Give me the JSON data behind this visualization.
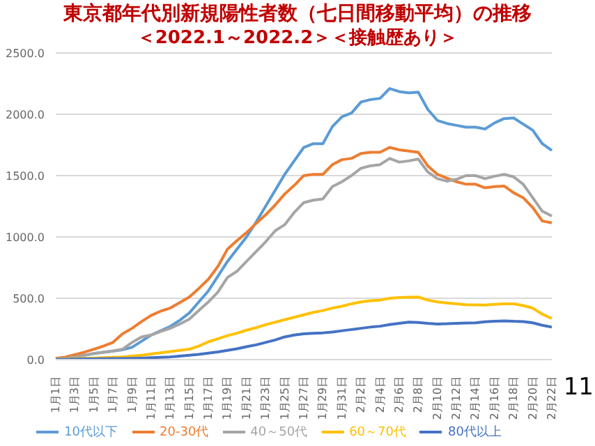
{
  "chart_data": {
    "type": "line",
    "title": "東京都年代別新規陽性者数（七日間移動平均）の推移",
    "subtitle": "＜2022.1～2022.2＞＜接触歴あり＞",
    "categories": [
      "1月1日",
      null,
      "1月3日",
      null,
      "1月5日",
      null,
      "1月7日",
      null,
      "1月9日",
      null,
      "1月11日",
      null,
      "1月13日",
      null,
      "1月15日",
      null,
      "1月17日",
      null,
      "1月19日",
      null,
      "1月21日",
      null,
      "1月23日",
      null,
      "1月25日",
      null,
      "1月27日",
      null,
      "1月29日",
      null,
      "1月31日",
      null,
      "2月2日",
      null,
      "2月4日",
      null,
      "2月6日",
      null,
      "2月8日",
      null,
      "2月10日",
      null,
      "2月12日",
      null,
      "2月14日",
      null,
      "2月16日",
      null,
      "2月18日",
      null,
      "2月20日",
      null,
      "2月22日"
    ],
    "series": [
      {
        "name": "10代以下",
        "color": "#5b9bd5",
        "values": [
          10,
          15,
          25,
          35,
          50,
          60,
          70,
          80,
          100,
          150,
          200,
          235,
          270,
          320,
          380,
          470,
          560,
          680,
          800,
          900,
          1000,
          1120,
          1250,
          1380,
          1510,
          1620,
          1730,
          1760,
          1760,
          1900,
          1980,
          2010,
          2100,
          2120,
          2130,
          2210,
          2185,
          2175,
          2180,
          2040,
          1950,
          1925,
          1910,
          1895,
          1895,
          1880,
          1930,
          1965,
          1970,
          1920,
          1870,
          1760,
          1705
        ]
      },
      {
        "name": "20-30代",
        "color": "#ed7d31",
        "values": [
          10,
          20,
          40,
          60,
          85,
          110,
          140,
          210,
          255,
          310,
          360,
          395,
          420,
          465,
          510,
          580,
          655,
          760,
          900,
          970,
          1035,
          1110,
          1180,
          1260,
          1350,
          1420,
          1500,
          1510,
          1510,
          1590,
          1630,
          1640,
          1680,
          1690,
          1690,
          1730,
          1710,
          1700,
          1690,
          1580,
          1510,
          1480,
          1450,
          1430,
          1430,
          1400,
          1410,
          1415,
          1360,
          1320,
          1240,
          1130,
          1115
        ]
      },
      {
        "name": "40～50代",
        "color": "#a5a5a5",
        "values": [
          5,
          10,
          20,
          35,
          50,
          60,
          70,
          85,
          140,
          185,
          200,
          230,
          255,
          290,
          330,
          400,
          470,
          550,
          670,
          720,
          800,
          880,
          960,
          1050,
          1100,
          1200,
          1280,
          1300,
          1310,
          1410,
          1450,
          1500,
          1560,
          1580,
          1590,
          1640,
          1610,
          1620,
          1635,
          1530,
          1475,
          1455,
          1470,
          1500,
          1500,
          1475,
          1495,
          1510,
          1490,
          1430,
          1320,
          1210,
          1170
        ]
      },
      {
        "name": "60～70代",
        "color": "#ffc000",
        "values": [
          3,
          5,
          8,
          10,
          12,
          15,
          18,
          22,
          28,
          35,
          45,
          55,
          65,
          75,
          85,
          110,
          145,
          170,
          195,
          215,
          240,
          260,
          285,
          305,
          325,
          345,
          365,
          385,
          400,
          420,
          435,
          455,
          470,
          480,
          485,
          500,
          505,
          508,
          510,
          485,
          470,
          462,
          455,
          448,
          446,
          444,
          450,
          455,
          455,
          440,
          420,
          370,
          335
        ]
      },
      {
        "name": "80代以上",
        "color": "#4472c4",
        "values": [
          2,
          3,
          4,
          5,
          6,
          7,
          8,
          9,
          10,
          12,
          15,
          18,
          22,
          28,
          35,
          42,
          52,
          62,
          75,
          88,
          105,
          120,
          140,
          160,
          185,
          200,
          210,
          215,
          218,
          225,
          235,
          245,
          255,
          265,
          272,
          285,
          295,
          305,
          303,
          295,
          290,
          292,
          296,
          298,
          300,
          308,
          312,
          316,
          312,
          310,
          300,
          280,
          265
        ]
      }
    ],
    "ylim": [
      0,
      2500
    ],
    "yticks": [
      {
        "value": 0,
        "label": "0.0"
      },
      {
        "value": 500,
        "label": "500.0"
      },
      {
        "value": 1000,
        "label": "1000.0"
      },
      {
        "value": 1500,
        "label": "1500.0"
      },
      {
        "value": 2000,
        "label": "2000.0"
      },
      {
        "value": 2500,
        "label": "2500.0"
      }
    ],
    "grid": "y",
    "legend": "bottom",
    "marker": "none",
    "line_style": "solid",
    "annotations": [
      "11"
    ]
  }
}
